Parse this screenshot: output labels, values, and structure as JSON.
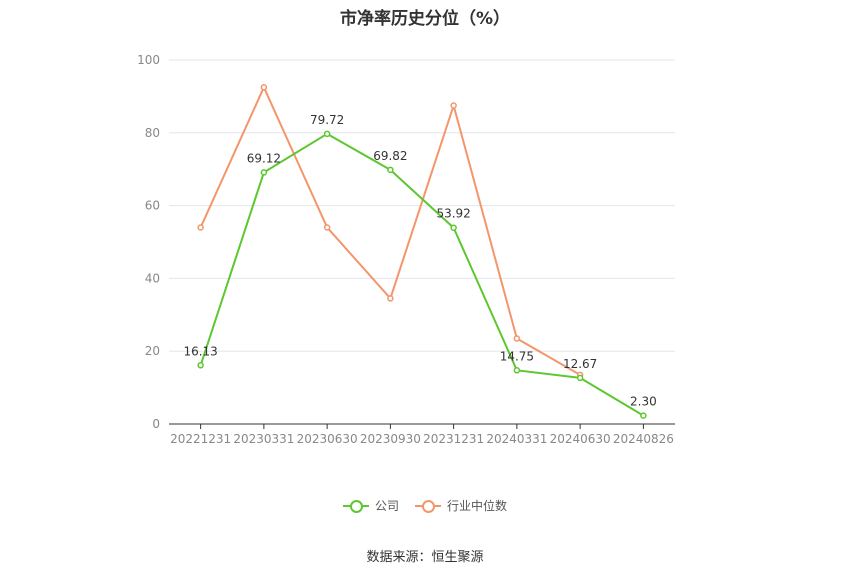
{
  "chart_data": {
    "type": "line",
    "title": "市净率历史分位（%）",
    "categories": [
      "20221231",
      "20230331",
      "20230630",
      "20230930",
      "20231231",
      "20240331",
      "20240630",
      "20240826"
    ],
    "ylim": [
      0,
      100
    ],
    "yticks": [
      0,
      20,
      40,
      60,
      80,
      100
    ],
    "grid": true,
    "legend_position": "bottom",
    "series": [
      {
        "name": "公司",
        "color": "#5cc72f",
        "values": [
          16.13,
          69.12,
          79.72,
          69.82,
          53.92,
          14.75,
          12.67,
          2.3
        ],
        "labels": [
          "16.13",
          "69.12",
          "79.72",
          "69.82",
          "53.92",
          "14.75",
          "12.67",
          "2.30"
        ]
      },
      {
        "name": "行业中位数",
        "color": "#f4956b",
        "values": [
          54,
          92.5,
          54,
          34.5,
          87.5,
          23.5,
          13.5,
          null
        ]
      }
    ]
  },
  "source": "数据来源：恒生聚源"
}
